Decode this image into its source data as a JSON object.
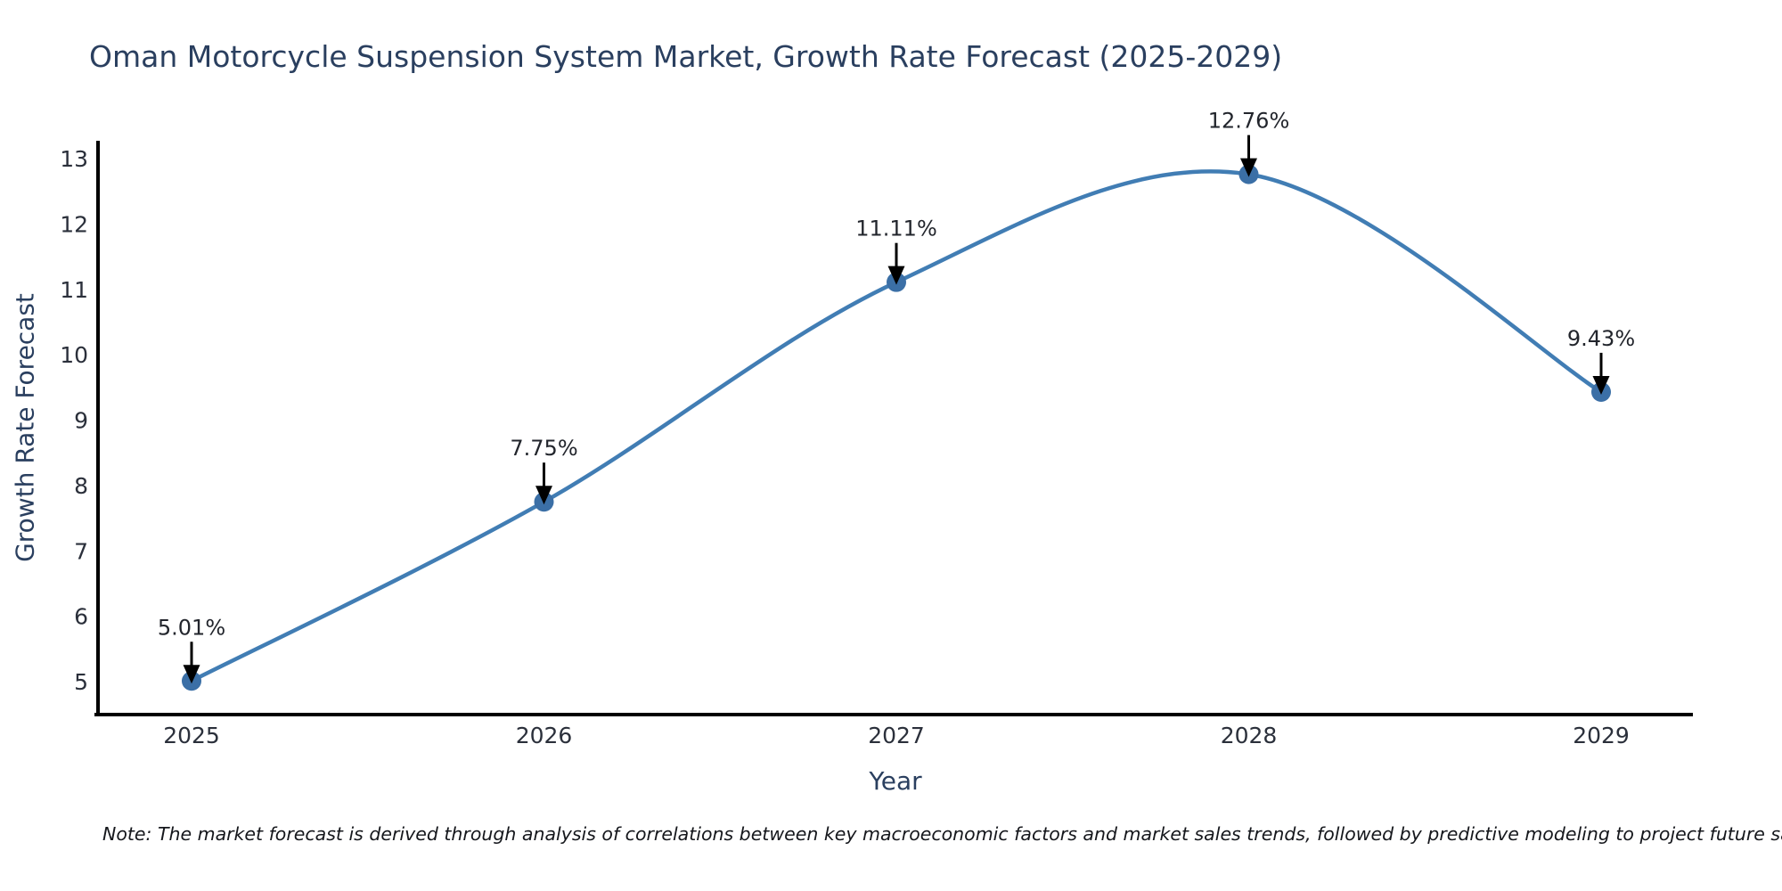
{
  "page": {
    "note": "Note: The market forecast is derived through analysis of correlations between key macroeconomic factors and market sales trends, followed by predictive modeling to project future sales"
  },
  "chart_data": {
    "type": "line",
    "title": "Oman Motorcycle Suspension System Market, Growth Rate Forecast (2025-2029)",
    "xlabel": "Year",
    "ylabel": "Growth Rate Forecast",
    "categories": [
      "2025",
      "2026",
      "2027",
      "2028",
      "2029"
    ],
    "series": [
      {
        "name": "Growth Rate Forecast",
        "values": [
          5.01,
          7.75,
          11.11,
          12.76,
          9.43
        ]
      }
    ],
    "point_labels": [
      "5.01%",
      "7.75%",
      "11.11%",
      "12.76%",
      "9.43%"
    ],
    "yticks": [
      5,
      6,
      7,
      8,
      9,
      10,
      11,
      12,
      13
    ],
    "ylim": [
      4.5,
      13.3
    ],
    "line_shape": "spline",
    "grid": false,
    "legend": "none",
    "markers": true,
    "annotation_style": "label-with-down-arrow",
    "colors": {
      "line": "#417db4",
      "marker": "#3b6fa6",
      "axis": "#000000",
      "annotation_arrow": "#000000",
      "annotation_text": "#22252c",
      "tick_text": "#2b303b",
      "title_text": "#2a3f5f",
      "background": "#ffffff"
    }
  }
}
